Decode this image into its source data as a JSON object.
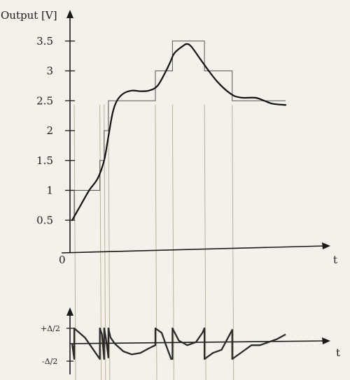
{
  "chart_data": [
    {
      "type": "line",
      "ylabel": "Output [V]",
      "xlabel": "t",
      "origin_label": "0",
      "ylim": [
        0,
        3.75
      ],
      "yticks": [
        {
          "value": 0.5,
          "label": "0.5"
        },
        {
          "value": 1,
          "label": "1"
        },
        {
          "value": 1.5,
          "label": "1.5"
        },
        {
          "value": 2,
          "label": "2"
        },
        {
          "value": 2.5,
          "label": "2.5"
        },
        {
          "value": 3,
          "label": "3"
        },
        {
          "value": 3.5,
          "label": "3.5"
        }
      ],
      "grid": false,
      "series": [
        {
          "style": "smooth",
          "color": "#111111",
          "points": [
            [
              0,
              0.5
            ],
            [
              2,
              0.75
            ],
            [
              4,
              1.0
            ],
            [
              6,
              1.2
            ],
            [
              7.5,
              1.5
            ],
            [
              8.5,
              1.9
            ],
            [
              9.5,
              2.3
            ],
            [
              10.5,
              2.5
            ],
            [
              12,
              2.62
            ],
            [
              14,
              2.67
            ],
            [
              16,
              2.66
            ],
            [
              18,
              2.67
            ],
            [
              20,
              2.75
            ],
            [
              22,
              3.0
            ],
            [
              23,
              3.15
            ],
            [
              24,
              3.3
            ],
            [
              26,
              3.42
            ],
            [
              27,
              3.45
            ],
            [
              28,
              3.4
            ],
            [
              30,
              3.2
            ],
            [
              32,
              3.0
            ],
            [
              34,
              2.82
            ],
            [
              36,
              2.68
            ],
            [
              38,
              2.58
            ],
            [
              40,
              2.55
            ],
            [
              43,
              2.55
            ],
            [
              45,
              2.5
            ],
            [
              47,
              2.45
            ],
            [
              50,
              2.43
            ]
          ]
        },
        {
          "style": "staircase",
          "color": "#555555",
          "points": [
            [
              0,
              0.5
            ],
            [
              0.5,
              0.5
            ],
            [
              0.5,
              1.0
            ],
            [
              6.5,
              1.0
            ],
            [
              6.5,
              1.5
            ],
            [
              7.5,
              1.5
            ],
            [
              7.5,
              2.0
            ],
            [
              8.5,
              2.0
            ],
            [
              8.5,
              2.5
            ],
            [
              19.5,
              2.5
            ],
            [
              19.5,
              3.0
            ],
            [
              23.5,
              3.0
            ],
            [
              23.5,
              3.5
            ],
            [
              31,
              3.5
            ],
            [
              31,
              3.0
            ],
            [
              37.5,
              3.0
            ],
            [
              37.5,
              2.5
            ],
            [
              50,
              2.5
            ]
          ]
        }
      ]
    },
    {
      "type": "line",
      "xlabel": "t",
      "ytick_labels": [
        "+Δ/2",
        "-Δ/2"
      ],
      "ylim": [
        -0.6,
        0.6
      ],
      "series": [
        {
          "style": "sawtooth",
          "color": "#2a2a2a",
          "points": [
            [
              0,
              0
            ],
            [
              0.5,
              -0.5
            ],
            [
              0.5,
              0.5
            ],
            [
              3,
              0.2
            ],
            [
              6.5,
              -0.5
            ],
            [
              6.5,
              0.5
            ],
            [
              7,
              0.3
            ],
            [
              7.5,
              -0.5
            ],
            [
              7.5,
              0.5
            ],
            [
              8,
              0.1
            ],
            [
              8.5,
              -0.45
            ],
            [
              8.5,
              0.5
            ],
            [
              9,
              0.2
            ],
            [
              10,
              0.0
            ],
            [
              12,
              -0.25
            ],
            [
              14,
              -0.35
            ],
            [
              16,
              -0.3
            ],
            [
              18,
              -0.15
            ],
            [
              19.5,
              -0.05
            ],
            [
              19.5,
              0.5
            ],
            [
              21,
              0.35
            ],
            [
              22,
              -0.05
            ],
            [
              23.2,
              -0.5
            ],
            [
              23.5,
              -0.5
            ],
            [
              23.5,
              0.5
            ],
            [
              25,
              0.1
            ],
            [
              27,
              -0.05
            ],
            [
              29,
              0.05
            ],
            [
              30.5,
              0.35
            ],
            [
              31,
              0.5
            ],
            [
              31,
              -0.5
            ],
            [
              33,
              -0.3
            ],
            [
              35,
              -0.2
            ],
            [
              37.5,
              0.45
            ],
            [
              37.5,
              -0.5
            ],
            [
              40,
              -0.25
            ],
            [
              42,
              -0.05
            ],
            [
              44,
              -0.05
            ],
            [
              46,
              0.05
            ],
            [
              48,
              0.15
            ],
            [
              50,
              0.3
            ]
          ]
        }
      ]
    }
  ]
}
